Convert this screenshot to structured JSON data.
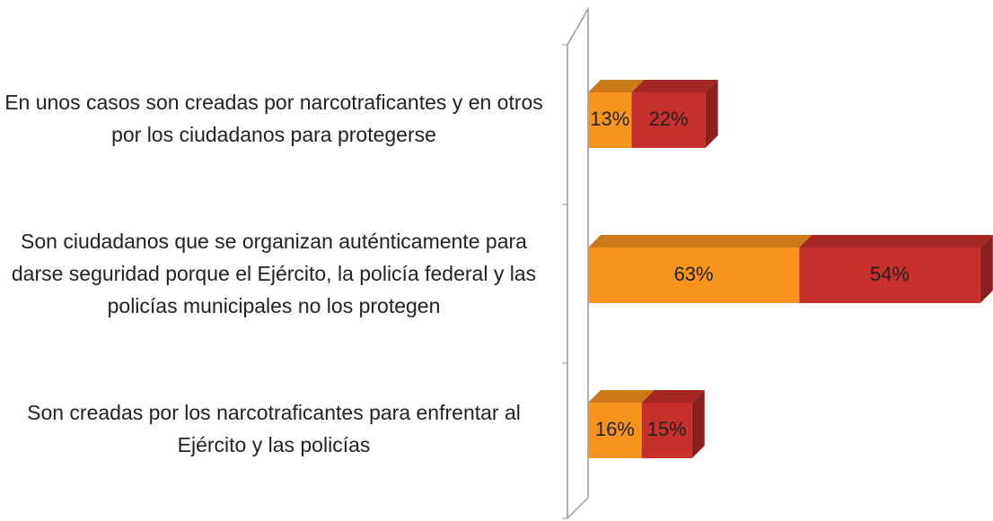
{
  "chart_data": {
    "type": "bar",
    "orientation": "horizontal",
    "stacked": true,
    "categories": [
      "En unos casos son creadas por narcotraficantes y en otros por los ciudadanos para protegerse",
      "Son ciudadanos que se organizan auténticamente para darse seguridad porque el Ejército, la policía federal y las policías municipales no los protegen",
      "Son creadas por los narcotraficantes para enfrentar al Ejército y las policías"
    ],
    "series": [
      {
        "color": "#f7941d",
        "values": [
          13,
          63,
          16
        ],
        "value_labels": [
          "13%",
          "63%",
          "16%"
        ]
      },
      {
        "color": "#c8302c",
        "values": [
          22,
          54,
          15
        ],
        "value_labels": [
          "22%",
          "54%",
          "15%"
        ]
      }
    ],
    "xlim": [
      0,
      120
    ]
  }
}
